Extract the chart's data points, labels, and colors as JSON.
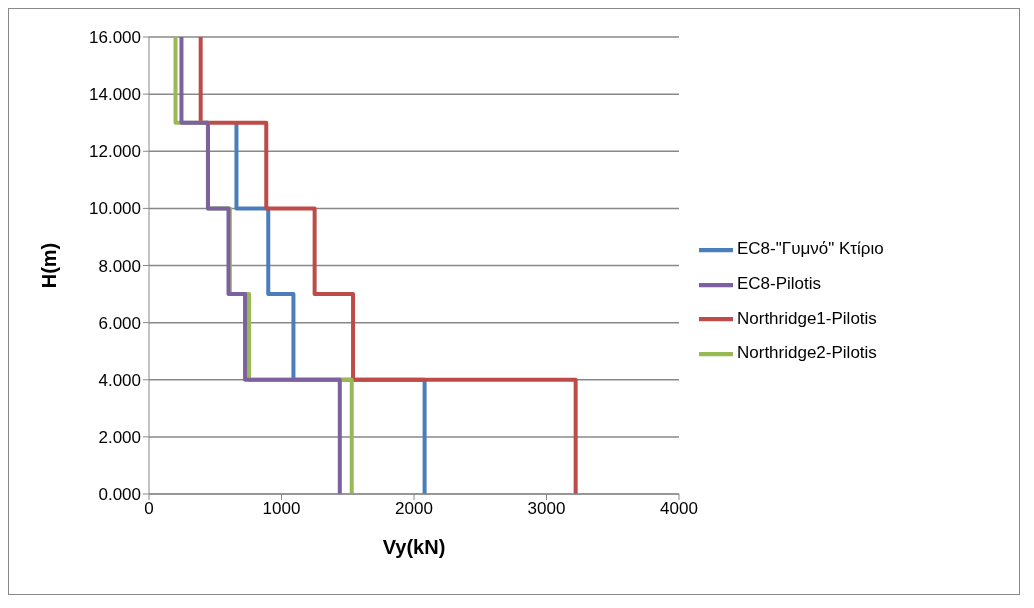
{
  "chart_data": {
    "type": "line",
    "xlabel": "Vy(kN)",
    "ylabel": "H(m)",
    "xlim": [
      0,
      4000
    ],
    "xticks": [
      0,
      1000,
      2000,
      3000,
      4000
    ],
    "ylim": [
      0,
      16
    ],
    "yticks": [
      {
        "value": 0,
        "label": "0.000"
      },
      {
        "value": 2,
        "label": "2.000"
      },
      {
        "value": 4,
        "label": "4.000"
      },
      {
        "value": 6,
        "label": "6.000"
      },
      {
        "value": 8,
        "label": "8.000"
      },
      {
        "value": 10,
        "label": "10.000"
      },
      {
        "value": 12,
        "label": "12.000"
      },
      {
        "value": 14,
        "label": "14.000"
      },
      {
        "value": 16,
        "label": "16.000"
      }
    ],
    "grid": "y",
    "legend": "right",
    "marker": "none",
    "line_style": "solid",
    "series": [
      {
        "name": "EC8-\"Γυμνό\" Κτίριο",
        "color": "#4a7ebb",
        "x": [
          660,
          660,
          900,
          900,
          1090,
          1090,
          2080,
          2080
        ],
        "values": [
          13,
          10,
          10,
          7,
          7,
          4,
          4,
          0
        ]
      },
      {
        "name": "Northridge1-Pilotis",
        "color": "#be4b48",
        "x": [
          390,
          390,
          885,
          885,
          1250,
          1250,
          1540,
          1540,
          3220,
          3220
        ],
        "values": [
          16,
          13,
          13,
          10,
          10,
          7,
          7,
          4,
          4,
          0
        ]
      },
      {
        "name": "Northridge2-Pilotis",
        "color": "#98b954",
        "x": [
          200,
          200,
          445,
          445,
          610,
          610,
          755,
          755,
          1530,
          1530
        ],
        "values": [
          16,
          13,
          13,
          10,
          10,
          7,
          7,
          4,
          4,
          0
        ]
      },
      {
        "name": "EC8-Pilotis",
        "color": "#7d60a0",
        "x": [
          245,
          245,
          445,
          445,
          600,
          600,
          725,
          725,
          1440,
          1440
        ],
        "values": [
          16,
          13,
          13,
          10,
          10,
          7,
          7,
          4,
          4,
          0
        ]
      }
    ]
  }
}
